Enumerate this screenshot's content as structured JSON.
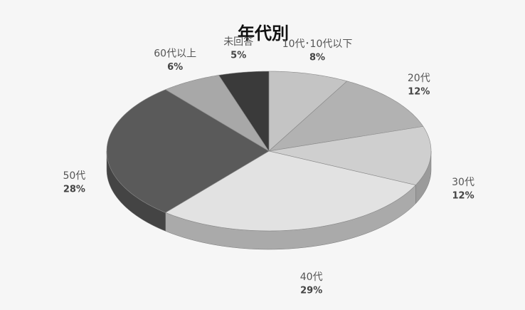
{
  "chart_data": {
    "type": "pie",
    "title": "年代別",
    "categories": [
      "10代･10代以下",
      "20代",
      "30代",
      "40代",
      "50代",
      "60代以上",
      "未回答"
    ],
    "values": [
      8,
      12,
      12,
      29,
      28,
      6,
      5
    ],
    "value_labels": [
      "8%",
      "12%",
      "12%",
      "29%",
      "28%",
      "6%",
      "5%"
    ],
    "colors": [
      "#c4c4c4",
      "#b2b2b2",
      "#cfcfcf",
      "#e2e2e2",
      "#5a5a5a",
      "#a8a8a8",
      "#3a3a3a"
    ]
  }
}
